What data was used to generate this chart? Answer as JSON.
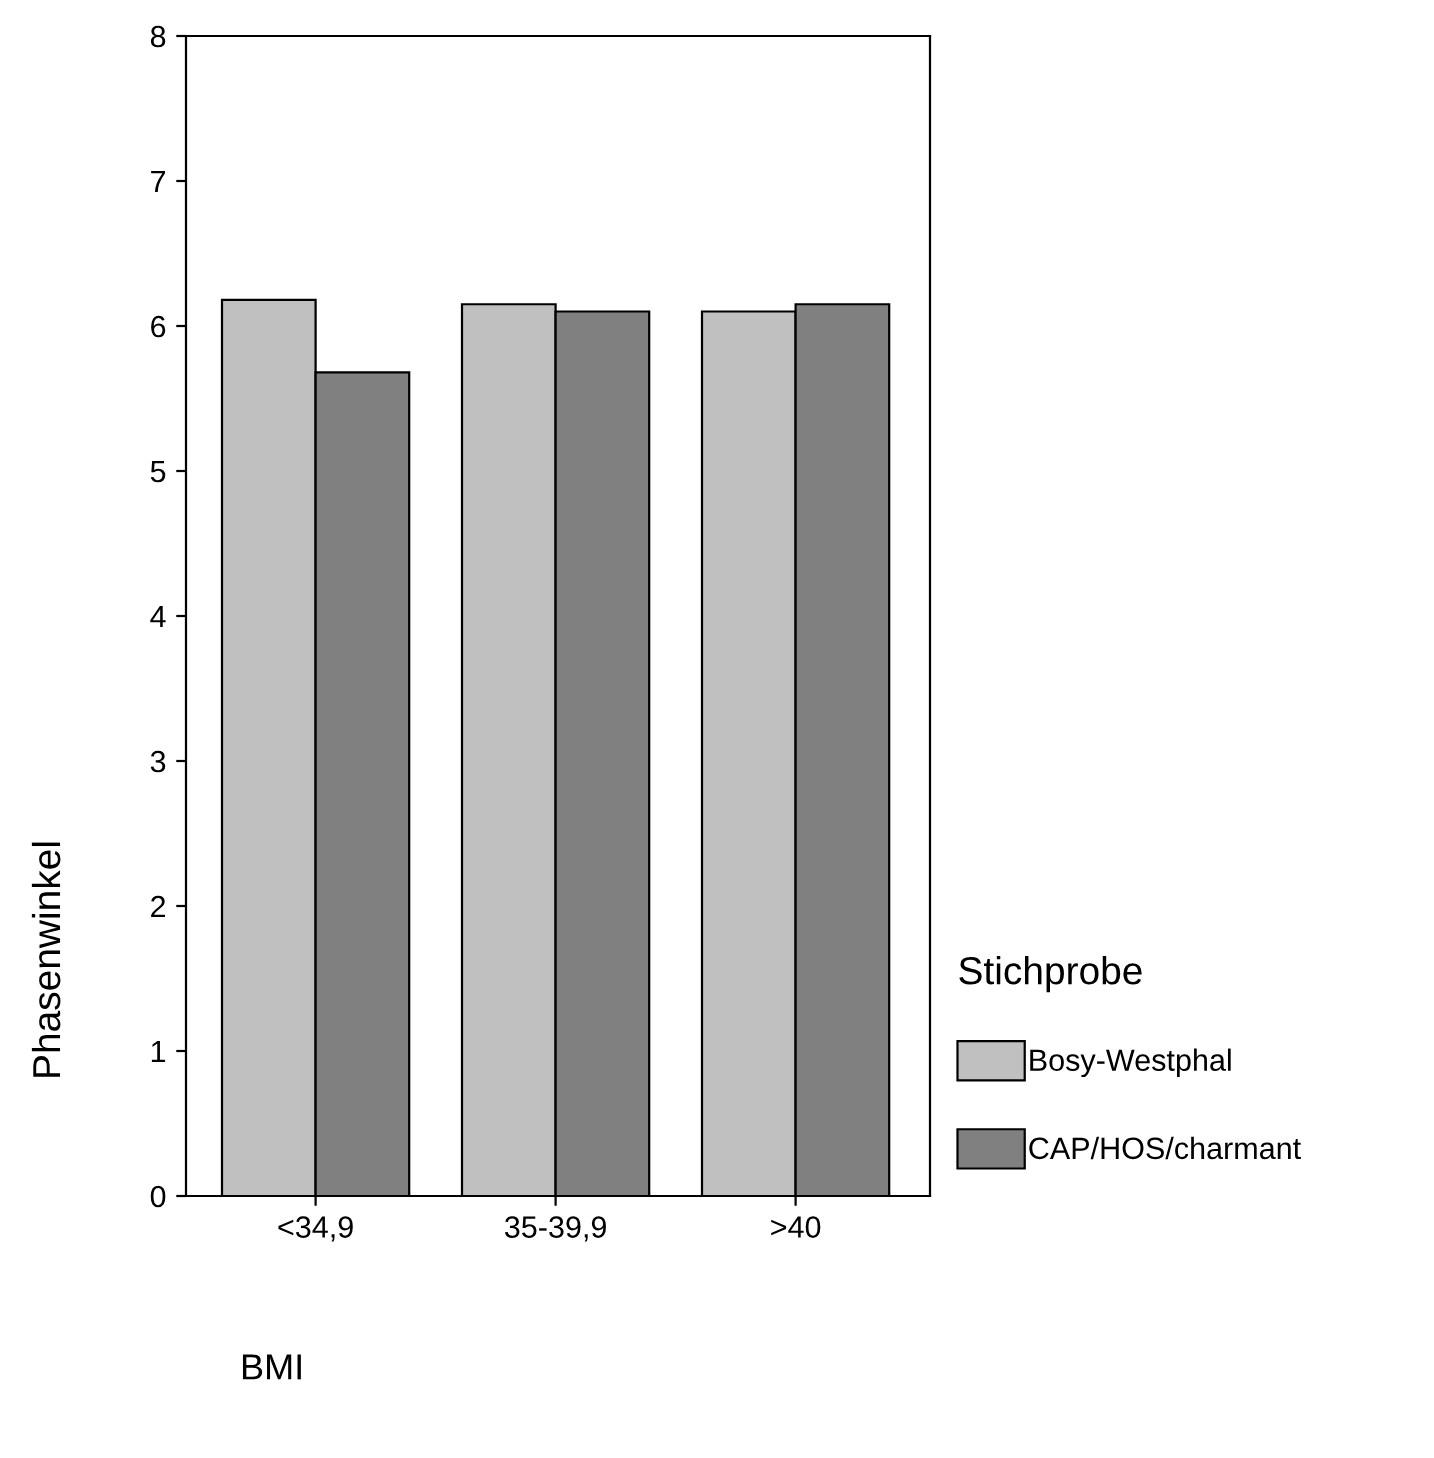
{
  "chart_data": {
    "type": "bar",
    "xlabel": "BMI",
    "ylabel": "Phasenwinkel",
    "legend_title": "Stichprobe",
    "categories": [
      "<34,9",
      "35-39,9",
      ">40"
    ],
    "series": [
      {
        "name": "Bosy-Westphal",
        "color": "#c0c0c0",
        "values": [
          6.18,
          6.15,
          6.1
        ]
      },
      {
        "name": "CAP/HOS/charmant",
        "color": "#808080",
        "values": [
          5.68,
          6.1,
          6.15
        ]
      }
    ],
    "ylim": [
      0,
      8
    ],
    "yticks": [
      0,
      1,
      2,
      3,
      4,
      5,
      6,
      7,
      8
    ],
    "grid": false,
    "legend": "right"
  }
}
